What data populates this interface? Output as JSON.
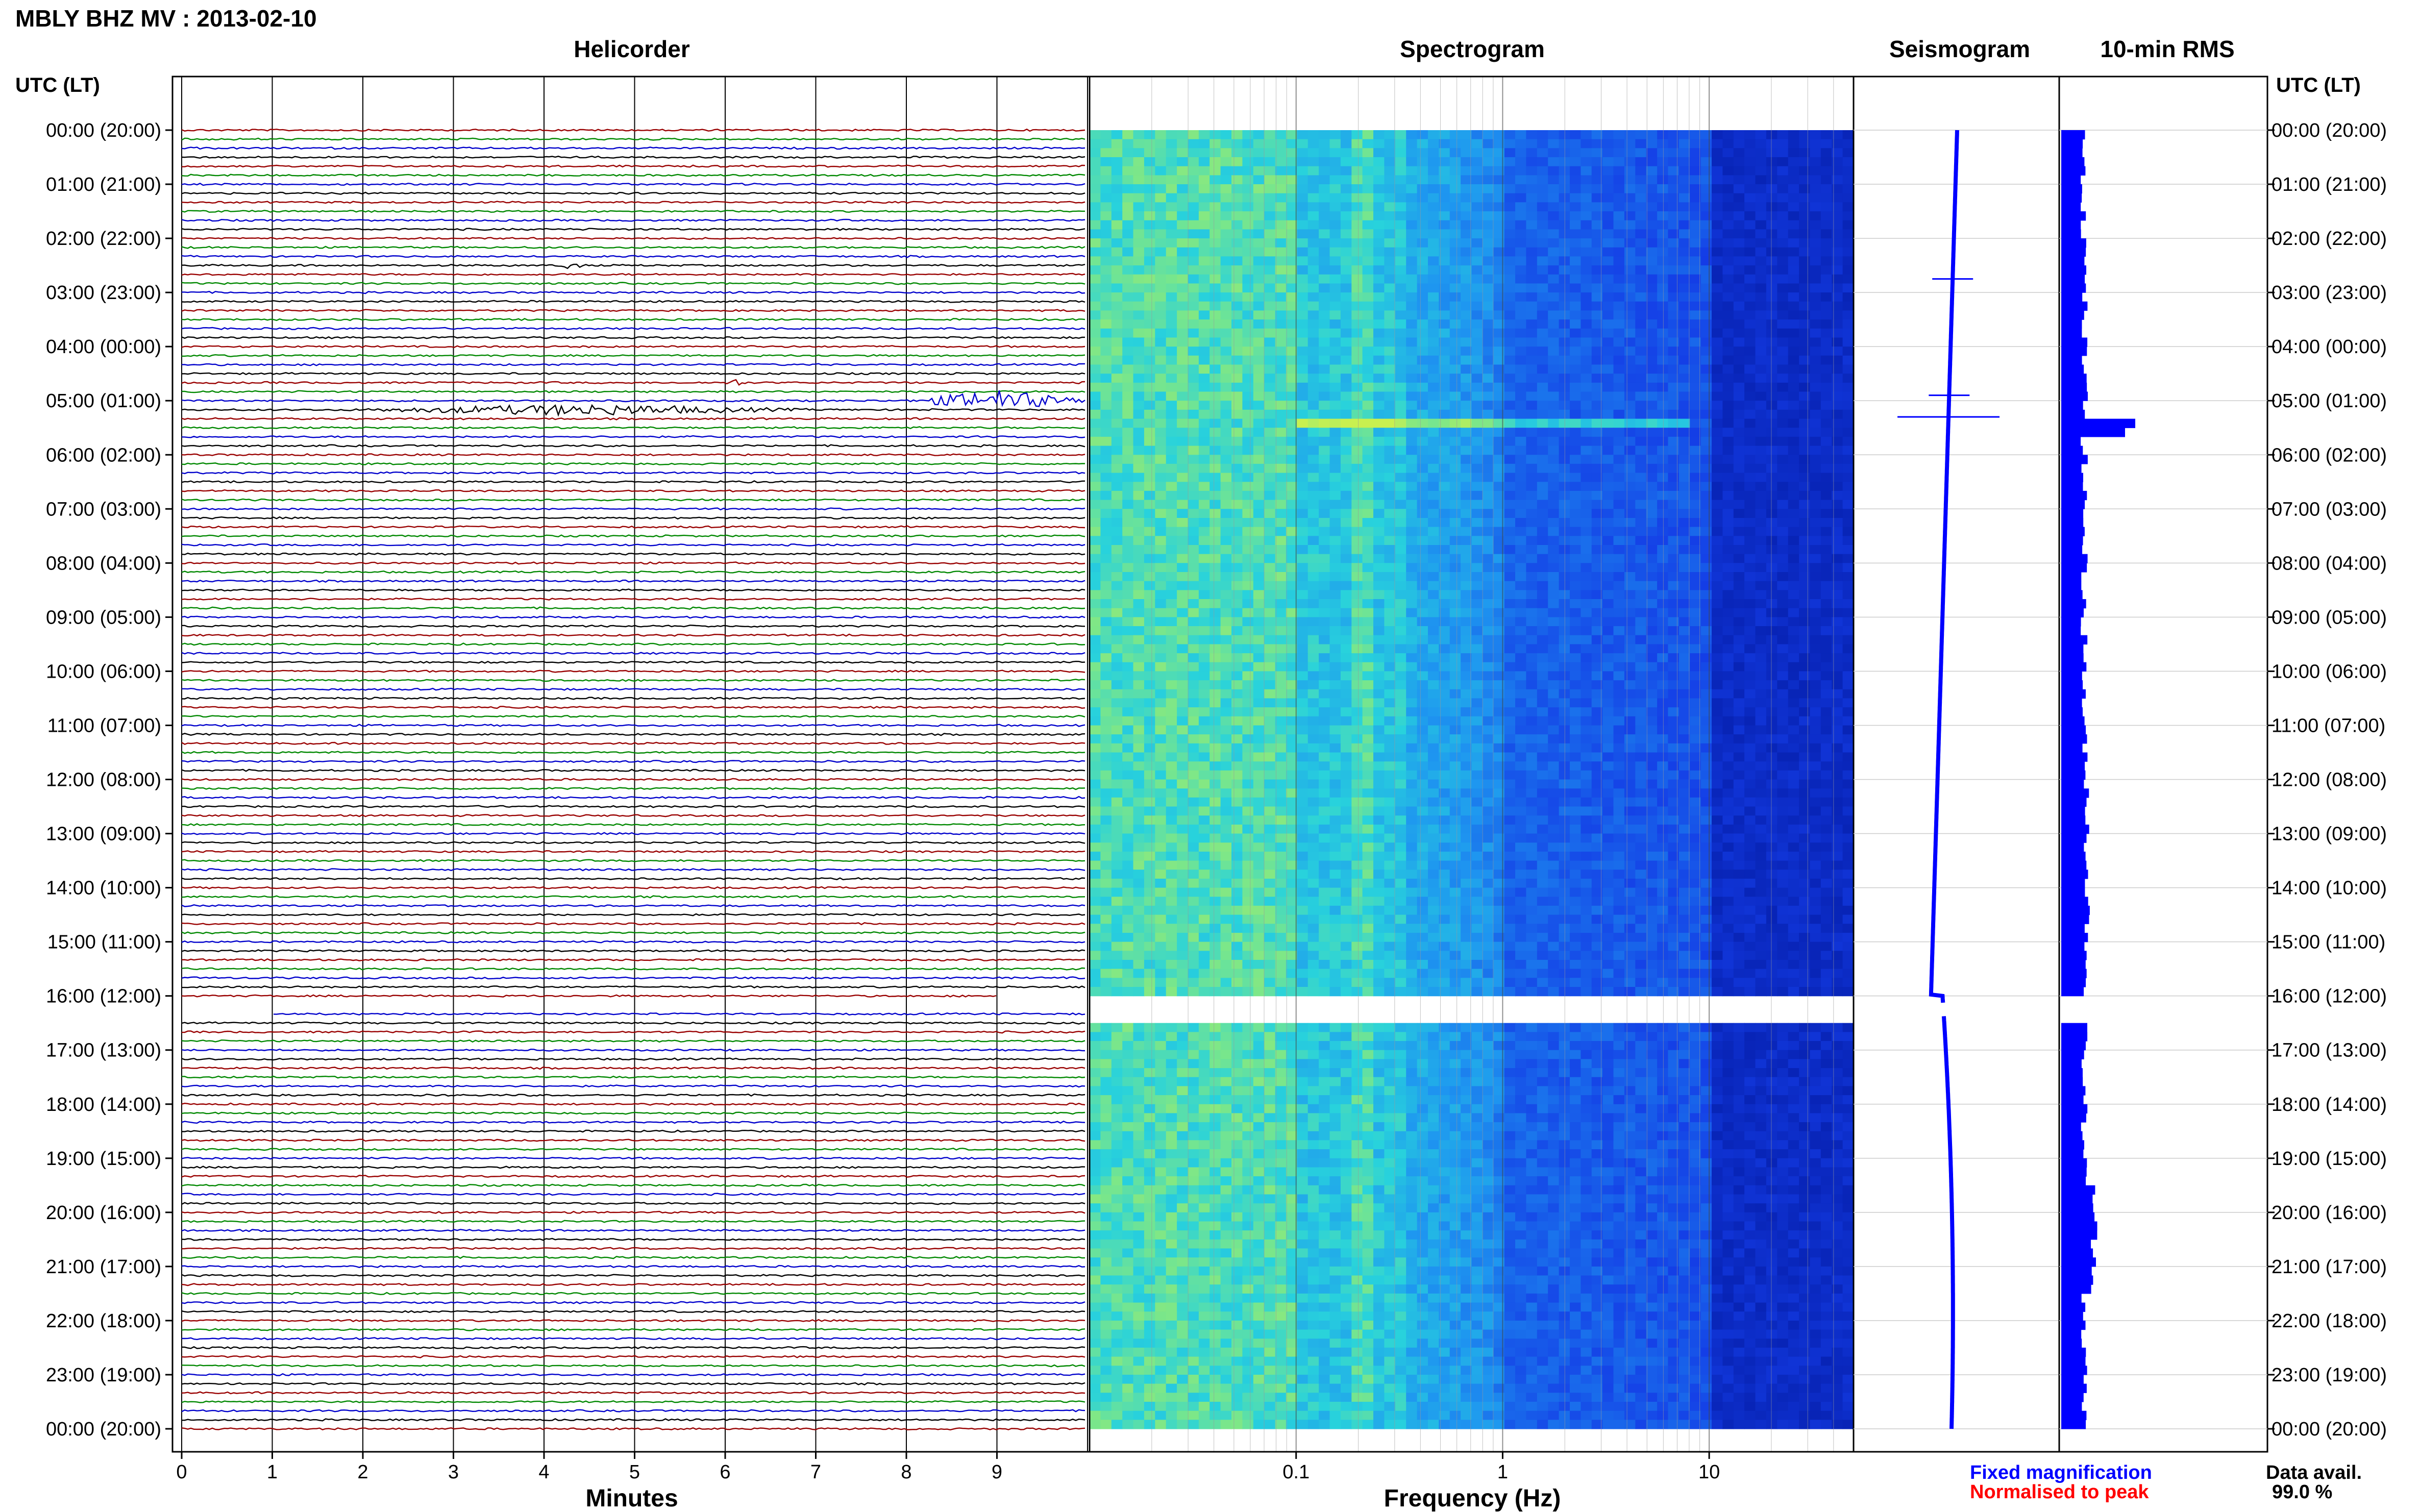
{
  "header": {
    "title": "MBLY BHZ MV : 2013-02-10",
    "left_axis_header": "UTC (LT)",
    "right_axis_header": "UTC (LT)"
  },
  "panels": {
    "helicorder": "Helicorder",
    "spectrogram": "Spectrogram",
    "seismogram": "Seismogram",
    "rms": "10-min RMS"
  },
  "legend": {
    "fixed": "Fixed magnification",
    "normalised": "Normalised to peak",
    "data_avail_label": "Data avail.",
    "data_avail_value": "99.0 %"
  },
  "colors": {
    "trace_cycle": [
      "#ff0000",
      "#00aa00",
      "#0000ff",
      "#000000"
    ],
    "helicorder_trace_cycle": [
      "#990000",
      "#008800",
      "#0000cc",
      "#000000"
    ],
    "seismo_blue": "#0000ff",
    "rms_blue": "#0000ff",
    "gap": "#ffffff"
  },
  "chart_data": [
    {
      "type": "line",
      "name": "helicorder",
      "title": "Helicorder",
      "xlabel": "Minutes",
      "x_ticks": [
        "0",
        "1",
        "2",
        "3",
        "4",
        "5",
        "6",
        "7",
        "8",
        "9"
      ],
      "xlim": [
        0,
        10
      ],
      "y_ticks": [
        "00:00 (20:00)",
        "01:00 (21:00)",
        "02:00 (22:00)",
        "03:00 (23:00)",
        "04:00 (00:00)",
        "05:00 (01:00)",
        "06:00 (02:00)",
        "07:00 (03:00)",
        "08:00 (04:00)",
        "09:00 (05:00)",
        "10:00 (06:00)",
        "11:00 (07:00)",
        "12:00 (08:00)",
        "13:00 (09:00)",
        "14:00 (10:00)",
        "15:00 (11:00)",
        "16:00 (12:00)",
        "17:00 (13:00)",
        "18:00 (14:00)",
        "19:00 (15:00)",
        "20:00 (16:00)",
        "21:00 (17:00)",
        "22:00 (18:00)",
        "23:00 (19:00)",
        "00:00 (20:00)"
      ],
      "rows_per_hour": 6,
      "events": [
        {
          "hour": 2.6,
          "minute": 4.3,
          "amplitude": 0.6
        },
        {
          "hour": 4.8,
          "minute": 6.1,
          "amplitude": 0.5
        },
        {
          "hour": 5.3,
          "minute": 4.4,
          "amplitude": 0.7,
          "spread": 2.6
        },
        {
          "hour": 5.1,
          "minute": 9.0,
          "amplitude": 1.4,
          "spread": 1.0
        }
      ],
      "gap_hours": [
        16.15,
        16.35
      ]
    },
    {
      "type": "heatmap",
      "name": "spectrogram",
      "title": "Spectrogram",
      "xlabel": "Frequency (Hz)",
      "x_ticks": [
        "0.1",
        "1",
        "10"
      ],
      "xscale": "log",
      "xlim": [
        0.01,
        50
      ],
      "gap_hours": [
        16.15,
        16.35
      ]
    },
    {
      "type": "line",
      "name": "seismogram",
      "title": "Seismogram",
      "events_hours": [
        2.75,
        4.9,
        5.3
      ]
    },
    {
      "type": "bar",
      "name": "rms",
      "title": "10-min RMS",
      "peak_hours": [
        5.3,
        5.45
      ]
    }
  ]
}
